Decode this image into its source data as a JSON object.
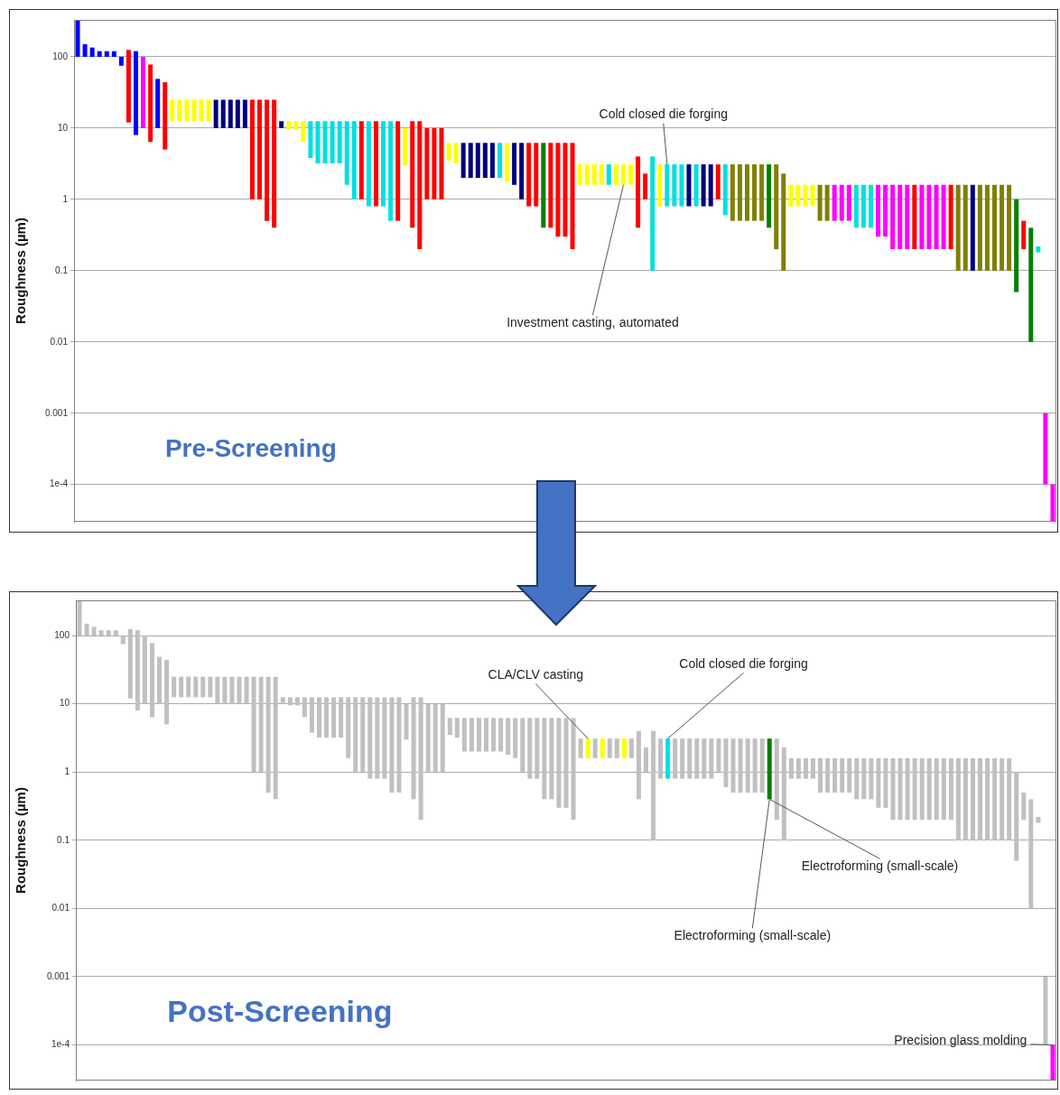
{
  "chart_data": [
    {
      "type": "bar",
      "ylabel": "Roughness (µm)",
      "log": true,
      "grid": "y",
      "tick_labels": "y",
      "ylim": [
        3e-05,
        330
      ],
      "yticks": [
        100,
        10,
        1,
        0.1,
        0.01,
        0.001,
        {
          "value": 0.0001,
          "label": "1e-4"
        }
      ],
      "annotations": [
        "Pre-Screening",
        "Cold closed die forging",
        "Investment casting, automated"
      ],
      "categories": [
        null,
        null,
        null,
        null,
        null,
        null,
        null,
        null,
        null,
        null,
        null,
        null,
        null,
        null,
        null,
        null,
        null,
        null,
        null,
        null,
        null,
        null,
        null,
        null,
        null,
        null,
        null,
        null,
        null,
        null,
        null,
        null,
        null,
        null,
        null,
        null,
        null,
        null,
        null,
        null,
        null,
        null,
        null,
        null,
        null,
        null,
        null,
        null,
        null,
        null,
        null,
        null,
        null,
        null,
        null,
        null,
        null,
        null,
        null,
        null,
        null,
        null,
        null,
        null,
        null,
        null,
        null,
        null,
        null,
        null,
        null,
        null,
        null,
        null,
        null,
        null,
        null,
        null,
        null,
        null,
        null,
        null,
        null,
        null,
        null,
        null,
        null,
        null,
        null,
        null,
        null,
        null,
        null,
        null,
        null,
        null,
        null,
        null,
        null,
        null,
        null,
        null,
        null,
        null,
        null,
        null,
        null,
        null,
        null,
        null,
        null,
        null,
        null,
        null,
        null,
        null,
        null,
        null,
        null,
        null,
        null,
        null,
        null,
        null,
        null,
        null,
        null,
        null,
        null,
        null,
        null,
        null,
        null,
        null,
        null
      ],
      "base": [
        100,
        100,
        100,
        100,
        100,
        100,
        75,
        12,
        8,
        10,
        6.4,
        10,
        5,
        12.5,
        12.5,
        12.5,
        12.5,
        12.5,
        12.5,
        10,
        10,
        10,
        10,
        10,
        1,
        1,
        0.5,
        0.4,
        10,
        9.5,
        9.5,
        6.4,
        3.8,
        3.2,
        3.2,
        3.2,
        3.2,
        1.6,
        1,
        1,
        0.8,
        0.8,
        0.8,
        0.5,
        0.5,
        3,
        0.4,
        0.2,
        1,
        1,
        1,
        3.5,
        3.2,
        2,
        2,
        2,
        2,
        2,
        2,
        1.8,
        1.6,
        1,
        0.8,
        0.8,
        0.4,
        0.4,
        0.3,
        0.3,
        0.2,
        1.6,
        1.6,
        1.6,
        1.6,
        1.6,
        1.6,
        1.6,
        1.6,
        0.4,
        1,
        0.1,
        0.8,
        0.8,
        0.8,
        0.8,
        0.8,
        0.8,
        0.8,
        0.8,
        1,
        0.6,
        0.5,
        0.5,
        0.5,
        0.5,
        0.5,
        0.4,
        0.2,
        0.1,
        0.8,
        0.8,
        0.8,
        0.8,
        0.5,
        0.5,
        0.5,
        0.5,
        0.5,
        0.4,
        0.4,
        0.4,
        0.3,
        0.3,
        0.2,
        0.2,
        0.2,
        0.2,
        0.2,
        0.2,
        0.2,
        0.2,
        0.2,
        0.1,
        0.1,
        0.1,
        0.1,
        0.1,
        0.1,
        0.1,
        0.1,
        0.05,
        0.2,
        0.01,
        0.18,
        0.0001,
        3e-05
      ],
      "values": [
        230,
        50,
        35,
        20,
        20,
        20,
        25,
        113,
        112,
        90,
        71.6,
        39,
        39,
        12.5,
        12.5,
        12.5,
        12.5,
        12.5,
        12.5,
        15,
        15,
        15,
        15,
        15,
        24,
        24,
        24.5,
        24.6,
        2.5,
        3,
        3,
        6.1,
        8.7,
        9.3,
        9.3,
        9.3,
        9.3,
        10.9,
        11.5,
        11.5,
        11.7,
        11.7,
        11.7,
        12,
        12,
        7,
        12.1,
        12.3,
        9,
        9,
        9,
        2.7,
        3,
        4.2,
        4.2,
        4.2,
        4.2,
        4.2,
        4.2,
        4.4,
        4.6,
        5.2,
        5.4,
        5.4,
        5.8,
        5.8,
        5.9,
        5.9,
        6,
        1.5,
        1.5,
        1.5,
        1.5,
        1.5,
        1.5,
        1.5,
        1.5,
        3.6,
        1.3,
        3.9,
        2.3,
        2.3,
        2.3,
        2.3,
        2.3,
        2.3,
        2.3,
        2.3,
        2.1,
        2.5,
        2.6,
        2.6,
        2.6,
        2.6,
        2.6,
        2.7,
        2.9,
        2.2,
        0.8,
        0.8,
        0.8,
        0.8,
        1.1,
        1.1,
        1.1,
        1.1,
        1.1,
        1.2,
        1.2,
        1.2,
        1.3,
        1.3,
        1.4,
        1.4,
        1.4,
        1.4,
        1.4,
        1.4,
        1.4,
        1.4,
        1.4,
        1.5,
        1.5,
        1.5,
        1.5,
        1.5,
        1.5,
        1.5,
        1.5,
        0.95,
        0.3,
        0.39,
        0.04,
        0.0009,
        7e-05
      ],
      "colors": [
        "#0000ff",
        "#0000ff",
        "#0000ff",
        "#0000ff",
        "#0000ff",
        "#0000ff",
        "#0000ff",
        "#ff0000",
        "#0000ff",
        "#ff00ff",
        "#ff0000",
        "#0000ff",
        "#ff0000",
        "#ffff00",
        "#ffff00",
        "#ffff00",
        "#ffff00",
        "#ffff00",
        "#ffff00",
        "#000080",
        "#000080",
        "#000080",
        "#000080",
        "#000080",
        "#ff0000",
        "#ff0000",
        "#ff0000",
        "#ff0000",
        "#000080",
        "#ffff00",
        "#ffff00",
        "#ffff00",
        "#00e0e0",
        "#00e0e0",
        "#00e0e0",
        "#00e0e0",
        "#00e0e0",
        "#00e0e0",
        "#00e0e0",
        "#ff0000",
        "#00e0e0",
        "#ff0000",
        "#00e0e0",
        "#00e0e0",
        "#ff0000",
        "#ffff00",
        "#ff0000",
        "#ff0000",
        "#ff0000",
        "#ff0000",
        "#ff0000",
        "#ffff00",
        "#ffff00",
        "#000080",
        "#000080",
        "#000080",
        "#000080",
        "#000080",
        "#00e0e0",
        "#ffff00",
        "#000080",
        "#000080",
        "#ff0000",
        "#ff0000",
        "#008000",
        "#ff0000",
        "#ff0000",
        "#ff0000",
        "#ff0000",
        "#ffff00",
        "#ffff00",
        "#ffff00",
        "#ffff00",
        "#00e0e0",
        "#ffff00",
        "#ffff00",
        "#ffff00",
        "#ff0000",
        "#ff0000",
        "#00e0e0",
        "#ffff00",
        "#00e0e0",
        "#00e0e0",
        "#00e0e0",
        "#000080",
        "#00e0e0",
        "#000080",
        "#000080",
        "#ff0000",
        "#00e0e0",
        "#808000",
        "#808000",
        "#808000",
        "#808000",
        "#808000",
        "#008000",
        "#808000",
        "#808000",
        "#ffff00",
        "#ffff00",
        "#ffff00",
        "#ffff00",
        "#808000",
        "#808000",
        "#ff00ff",
        "#ff00ff",
        "#ff00ff",
        "#00e0e0",
        "#00e0e0",
        "#00e0e0",
        "#ff00ff",
        "#ff00ff",
        "#ff00ff",
        "#ff00ff",
        "#ff00ff",
        "#ff0000",
        "#ff00ff",
        "#ff00ff",
        "#ff00ff",
        "#ff00ff",
        "#ff0000",
        "#808000",
        "#808000",
        "#000080",
        "#808000",
        "#808000",
        "#808000",
        "#808000",
        "#808000",
        "#008000",
        "#ff0000",
        "#008000",
        "#00e0e0",
        "#ff00ff",
        "#ff00ff"
      ]
    },
    {
      "type": "bar",
      "ylabel": "Roughness (µm)",
      "log": true,
      "grid": "y",
      "tick_labels": "y",
      "ylim": [
        3e-05,
        330
      ],
      "yticks": [
        100,
        10,
        1,
        0.1,
        0.01,
        0.001,
        {
          "value": 0.0001,
          "label": "1e-4"
        }
      ],
      "annotations": [
        "Post-Screening",
        "CLA/CLV casting",
        "Cold closed die forging",
        "Electroforming (small-scale)",
        "Electroforming (small-scale)",
        "Precision glass molding"
      ],
      "categories": [
        null,
        null,
        null,
        null,
        null,
        null,
        null,
        null,
        null,
        null,
        null,
        null,
        null,
        null,
        null,
        null,
        null,
        null,
        null,
        null,
        null,
        null,
        null,
        null,
        null,
        null,
        null,
        null,
        null,
        null,
        null,
        null,
        null,
        null,
        null,
        null,
        null,
        null,
        null,
        null,
        null,
        null,
        null,
        null,
        null,
        null,
        null,
        null,
        null,
        null,
        null,
        null,
        null,
        null,
        null,
        null,
        null,
        null,
        null,
        null,
        null,
        null,
        null,
        null,
        null,
        null,
        null,
        null,
        null,
        null,
        null,
        null,
        null,
        null,
        null,
        null,
        null,
        null,
        null,
        null,
        null,
        null,
        null,
        null,
        null,
        null,
        null,
        null,
        null,
        null,
        null,
        null,
        null,
        null,
        null,
        null,
        null,
        null,
        null,
        null,
        null,
        null,
        null,
        null,
        null,
        null,
        null,
        null,
        null,
        null,
        null,
        null,
        null,
        null,
        null,
        null,
        null,
        null,
        null,
        null,
        null,
        null,
        null,
        null,
        null,
        null,
        null,
        null,
        null,
        null,
        null,
        null,
        null,
        null,
        null
      ],
      "base": [
        100,
        100,
        100,
        100,
        100,
        100,
        75,
        12,
        8,
        10,
        6.4,
        10,
        5,
        12.5,
        12.5,
        12.5,
        12.5,
        12.5,
        12.5,
        10,
        10,
        10,
        10,
        10,
        1,
        1,
        0.5,
        0.4,
        10,
        9.5,
        9.5,
        6.4,
        3.8,
        3.2,
        3.2,
        3.2,
        3.2,
        1.6,
        1,
        1,
        0.8,
        0.8,
        0.8,
        0.5,
        0.5,
        3,
        0.4,
        0.2,
        1,
        1,
        1,
        3.5,
        3.2,
        2,
        2,
        2,
        2,
        2,
        2,
        1.8,
        1.6,
        1,
        0.8,
        0.8,
        0.4,
        0.4,
        0.3,
        0.3,
        0.2,
        1.6,
        1.6,
        1.6,
        1.6,
        1.6,
        1.6,
        1.6,
        1.6,
        0.4,
        1,
        0.1,
        0.8,
        0.8,
        0.8,
        0.8,
        0.8,
        0.8,
        0.8,
        0.8,
        1,
        0.6,
        0.5,
        0.5,
        0.5,
        0.5,
        0.5,
        0.4,
        0.2,
        0.1,
        0.8,
        0.8,
        0.8,
        0.8,
        0.5,
        0.5,
        0.5,
        0.5,
        0.5,
        0.4,
        0.4,
        0.4,
        0.3,
        0.3,
        0.2,
        0.2,
        0.2,
        0.2,
        0.2,
        0.2,
        0.2,
        0.2,
        0.2,
        0.1,
        0.1,
        0.1,
        0.1,
        0.1,
        0.1,
        0.1,
        0.1,
        0.05,
        0.2,
        0.01,
        0.18,
        0.0001,
        3e-05
      ],
      "values": [
        230,
        50,
        35,
        20,
        20,
        20,
        25,
        113,
        112,
        90,
        71.6,
        39,
        39,
        12.5,
        12.5,
        12.5,
        12.5,
        12.5,
        12.5,
        15,
        15,
        15,
        15,
        15,
        24,
        24,
        24.5,
        24.6,
        2.5,
        3,
        3,
        6.1,
        8.7,
        9.3,
        9.3,
        9.3,
        9.3,
        10.9,
        11.5,
        11.5,
        11.7,
        11.7,
        11.7,
        12,
        12,
        7,
        12.1,
        12.3,
        9,
        9,
        9,
        2.7,
        3,
        4.2,
        4.2,
        4.2,
        4.2,
        4.2,
        4.2,
        4.4,
        4.6,
        5.2,
        5.4,
        5.4,
        5.8,
        5.8,
        5.9,
        5.9,
        6,
        1.5,
        1.5,
        1.5,
        1.5,
        1.5,
        1.5,
        1.5,
        1.5,
        3.6,
        1.3,
        3.9,
        2.3,
        2.3,
        2.3,
        2.3,
        2.3,
        2.3,
        2.3,
        2.3,
        2.1,
        2.5,
        2.6,
        2.6,
        2.6,
        2.6,
        2.6,
        2.7,
        2.9,
        2.2,
        0.8,
        0.8,
        0.8,
        0.8,
        1.1,
        1.1,
        1.1,
        1.1,
        1.1,
        1.2,
        1.2,
        1.2,
        1.3,
        1.3,
        1.4,
        1.4,
        1.4,
        1.4,
        1.4,
        1.4,
        1.4,
        1.4,
        1.4,
        1.5,
        1.5,
        1.5,
        1.5,
        1.5,
        1.5,
        1.5,
        1.5,
        0.95,
        0.3,
        0.39,
        0.04,
        0.0009,
        7e-05
      ],
      "colors": [
        "#c0c0c0",
        "#c0c0c0",
        "#c0c0c0",
        "#c0c0c0",
        "#c0c0c0",
        "#c0c0c0",
        "#c0c0c0",
        "#c0c0c0",
        "#c0c0c0",
        "#c0c0c0",
        "#c0c0c0",
        "#c0c0c0",
        "#c0c0c0",
        "#c0c0c0",
        "#c0c0c0",
        "#c0c0c0",
        "#c0c0c0",
        "#c0c0c0",
        "#c0c0c0",
        "#c0c0c0",
        "#c0c0c0",
        "#c0c0c0",
        "#c0c0c0",
        "#c0c0c0",
        "#c0c0c0",
        "#c0c0c0",
        "#c0c0c0",
        "#c0c0c0",
        "#c0c0c0",
        "#c0c0c0",
        "#c0c0c0",
        "#c0c0c0",
        "#c0c0c0",
        "#c0c0c0",
        "#c0c0c0",
        "#c0c0c0",
        "#c0c0c0",
        "#c0c0c0",
        "#c0c0c0",
        "#c0c0c0",
        "#c0c0c0",
        "#c0c0c0",
        "#c0c0c0",
        "#c0c0c0",
        "#c0c0c0",
        "#c0c0c0",
        "#c0c0c0",
        "#c0c0c0",
        "#c0c0c0",
        "#c0c0c0",
        "#c0c0c0",
        "#c0c0c0",
        "#c0c0c0",
        "#c0c0c0",
        "#c0c0c0",
        "#c0c0c0",
        "#c0c0c0",
        "#c0c0c0",
        "#c0c0c0",
        "#c0c0c0",
        "#c0c0c0",
        "#c0c0c0",
        "#c0c0c0",
        "#c0c0c0",
        "#c0c0c0",
        "#c0c0c0",
        "#c0c0c0",
        "#c0c0c0",
        "#c0c0c0",
        "#c0c0c0",
        "#ffff00",
        "#c0c0c0",
        "#ffff00",
        "#c0c0c0",
        "#c0c0c0",
        "#ffff00",
        "#c0c0c0",
        "#c0c0c0",
        "#c0c0c0",
        "#c0c0c0",
        "#c0c0c0",
        "#00e0e0",
        "#c0c0c0",
        "#c0c0c0",
        "#c0c0c0",
        "#c0c0c0",
        "#c0c0c0",
        "#c0c0c0",
        "#c0c0c0",
        "#c0c0c0",
        "#c0c0c0",
        "#c0c0c0",
        "#c0c0c0",
        "#c0c0c0",
        "#c0c0c0",
        "#008000",
        "#c0c0c0",
        "#c0c0c0",
        "#c0c0c0",
        "#c0c0c0",
        "#c0c0c0",
        "#c0c0c0",
        "#c0c0c0",
        "#c0c0c0",
        "#c0c0c0",
        "#c0c0c0",
        "#c0c0c0",
        "#c0c0c0",
        "#c0c0c0",
        "#c0c0c0",
        "#c0c0c0",
        "#c0c0c0",
        "#c0c0c0",
        "#c0c0c0",
        "#c0c0c0",
        "#c0c0c0",
        "#c0c0c0",
        "#c0c0c0",
        "#c0c0c0",
        "#c0c0c0",
        "#c0c0c0",
        "#c0c0c0",
        "#c0c0c0",
        "#c0c0c0",
        "#c0c0c0",
        "#c0c0c0",
        "#c0c0c0",
        "#c0c0c0",
        "#c0c0c0",
        "#c0c0c0",
        "#c0c0c0",
        "#c0c0c0",
        "#c0c0c0",
        "#c0c0c0",
        "#ff00ff"
      ]
    }
  ]
}
